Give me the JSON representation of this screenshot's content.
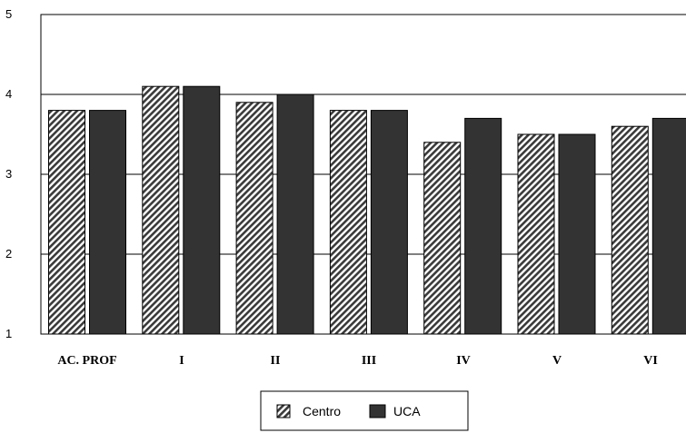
{
  "chart_data": {
    "type": "bar",
    "title": "",
    "xlabel": "",
    "ylabel": "",
    "categories": [
      "AC. PROF",
      "I",
      "II",
      "III",
      "IV",
      "V",
      "VI"
    ],
    "ylim": [
      1,
      5
    ],
    "yticks": [
      "1",
      "2",
      "3",
      "4",
      "5"
    ],
    "grid": "horizontal",
    "legend_position": "bottom",
    "series": [
      {
        "name": "Centro",
        "values": [
          3.8,
          4.1,
          3.9,
          3.8,
          3.4,
          3.5,
          3.6
        ],
        "pattern": "diagonal-hatch",
        "color": "#555555"
      },
      {
        "name": "UCA",
        "values": [
          3.8,
          4.1,
          4.0,
          3.8,
          3.7,
          3.5,
          3.7
        ],
        "pattern": "solid",
        "color": "#333333"
      }
    ]
  }
}
